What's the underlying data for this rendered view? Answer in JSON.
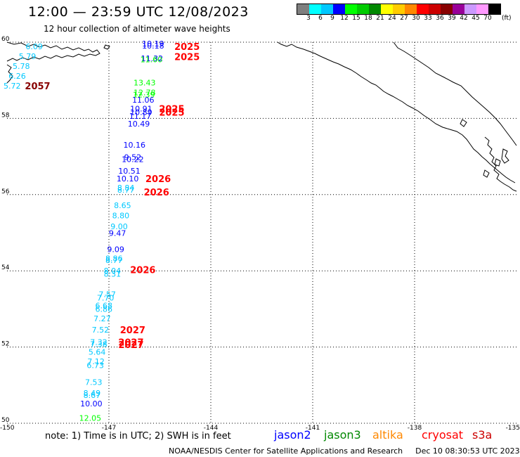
{
  "header": {
    "title": "12:00 — 23:59 UTC 12/08/2023",
    "subtitle": "12 hour collection of altimeter wave heights"
  },
  "colorbar": {
    "colors": [
      "#7f7f7f",
      "#00ffff",
      "#00c8ff",
      "#0000ff",
      "#00ff00",
      "#00cc00",
      "#008800",
      "#ffff00",
      "#ffcc00",
      "#ff8800",
      "#ff0000",
      "#cc0000",
      "#880000",
      "#990099",
      "#cc99ff",
      "#ff99ff",
      "#000000"
    ],
    "labels": [
      "3",
      "6",
      "9",
      "12",
      "15",
      "18",
      "21",
      "24",
      "27",
      "30",
      "33",
      "36",
      "39",
      "42",
      "45",
      "70"
    ],
    "unit": "(ft)"
  },
  "map": {
    "lat_labels": [
      "60",
      "58",
      "56",
      "54",
      "52",
      "50"
    ],
    "lon_labels": [
      "-150",
      "-147",
      "-144",
      "-141",
      "-138",
      "-135"
    ],
    "observations": [
      {
        "lon": -149.2,
        "lat": 59.89,
        "value": "6.09",
        "color": "#00c8ff"
      },
      {
        "lon": -149.4,
        "lat": 59.63,
        "value": "5.79",
        "color": "#00c8ff"
      },
      {
        "lon": -149.58,
        "lat": 59.37,
        "value": "5.78",
        "color": "#00c8ff"
      },
      {
        "lon": -149.7,
        "lat": 59.11,
        "value": "6.26",
        "color": "#00c8ff"
      },
      {
        "lon": -149.85,
        "lat": 58.86,
        "value": "5.72",
        "color": "#00c8ff"
      },
      {
        "lon": -145.7,
        "lat": 59.96,
        "value": "10.19",
        "color": "#0000ff"
      },
      {
        "lon": -145.7,
        "lat": 59.91,
        "value": "10.18",
        "color": "#0000ff"
      },
      {
        "lon": -145.73,
        "lat": 59.58,
        "value": "11.32",
        "color": "#0000ff"
      },
      {
        "lon": -145.75,
        "lat": 59.55,
        "value": "11.60",
        "color": "#00ff00"
      },
      {
        "lon": -145.95,
        "lat": 58.94,
        "value": "13.43",
        "color": "#00ff00"
      },
      {
        "lon": -145.95,
        "lat": 58.68,
        "value": "12.78",
        "color": "#00ff00"
      },
      {
        "lon": -145.97,
        "lat": 58.63,
        "value": "12.39",
        "color": "#00ff00"
      },
      {
        "lon": -145.99,
        "lat": 58.49,
        "value": "11.06",
        "color": "#0000ff"
      },
      {
        "lon": -146.05,
        "lat": 58.26,
        "value": "10.91",
        "color": "#0000ff"
      },
      {
        "lon": -146.05,
        "lat": 58.16,
        "value": "10.89",
        "color": "#0000ff"
      },
      {
        "lon": -146.08,
        "lat": 58.06,
        "value": "11.17",
        "color": "#0000ff"
      },
      {
        "lon": -146.12,
        "lat": 57.86,
        "value": "10.49",
        "color": "#0000ff"
      },
      {
        "lon": -146.25,
        "lat": 57.31,
        "value": "10.16",
        "color": "#0000ff"
      },
      {
        "lon": -146.3,
        "lat": 56.98,
        "value": "9.52",
        "color": "#0000ff"
      },
      {
        "lon": -146.3,
        "lat": 56.93,
        "value": "10.22",
        "color": "#0000ff"
      },
      {
        "lon": -146.4,
        "lat": 56.62,
        "value": "10.51",
        "color": "#0000ff"
      },
      {
        "lon": -146.45,
        "lat": 56.42,
        "value": "10.10",
        "color": "#0000ff"
      },
      {
        "lon": -146.5,
        "lat": 56.18,
        "value": "8.84",
        "color": "#00c8ff"
      },
      {
        "lon": -146.5,
        "lat": 56.13,
        "value": "8.77",
        "color": "#00c8ff"
      },
      {
        "lon": -146.6,
        "lat": 55.72,
        "value": "8.65",
        "color": "#00c8ff"
      },
      {
        "lon": -146.65,
        "lat": 55.45,
        "value": "8.80",
        "color": "#00c8ff"
      },
      {
        "lon": -146.7,
        "lat": 55.17,
        "value": "9.00",
        "color": "#00c8ff"
      },
      {
        "lon": -146.75,
        "lat": 54.99,
        "value": "9.47",
        "color": "#0000ff"
      },
      {
        "lon": -146.8,
        "lat": 54.57,
        "value": "9.09",
        "color": "#0000ff"
      },
      {
        "lon": -146.85,
        "lat": 54.33,
        "value": "8.86",
        "color": "#00c8ff"
      },
      {
        "lon": -146.85,
        "lat": 54.28,
        "value": "8.77",
        "color": "#00c8ff"
      },
      {
        "lon": -146.9,
        "lat": 54.0,
        "value": "8.04",
        "color": "#00c8ff"
      },
      {
        "lon": -146.9,
        "lat": 53.92,
        "value": "8.31",
        "color": "#00c8ff"
      },
      {
        "lon": -147.05,
        "lat": 53.39,
        "value": "7.57",
        "color": "#00c8ff"
      },
      {
        "lon": -147.1,
        "lat": 53.29,
        "value": "7.70",
        "color": "#00c8ff"
      },
      {
        "lon": -147.15,
        "lat": 53.09,
        "value": "6.68",
        "color": "#00c8ff"
      },
      {
        "lon": -147.15,
        "lat": 53.0,
        "value": "6.86",
        "color": "#00c8ff"
      },
      {
        "lon": -147.2,
        "lat": 52.75,
        "value": "7.27",
        "color": "#00c8ff"
      },
      {
        "lon": -147.25,
        "lat": 52.45,
        "value": "7.52",
        "color": "#00c8ff"
      },
      {
        "lon": -147.3,
        "lat": 52.13,
        "value": "7.32",
        "color": "#00c8ff"
      },
      {
        "lon": -147.3,
        "lat": 52.08,
        "value": "7.38",
        "color": "#00c8ff"
      },
      {
        "lon": -147.35,
        "lat": 51.87,
        "value": "5.64",
        "color": "#00c8ff"
      },
      {
        "lon": -147.38,
        "lat": 51.62,
        "value": "7.12",
        "color": "#00c8ff"
      },
      {
        "lon": -147.4,
        "lat": 51.52,
        "value": "6.73",
        "color": "#00c8ff"
      },
      {
        "lon": -147.45,
        "lat": 51.08,
        "value": "7.53",
        "color": "#00c8ff"
      },
      {
        "lon": -147.5,
        "lat": 50.79,
        "value": "8.49",
        "color": "#00c8ff"
      },
      {
        "lon": -147.5,
        "lat": 50.74,
        "value": "8.67",
        "color": "#00c8ff"
      },
      {
        "lon": -147.52,
        "lat": 50.52,
        "value": "10.00",
        "color": "#0000ff"
      },
      {
        "lon": -147.55,
        "lat": 50.14,
        "value": "12.05",
        "color": "#00ff00"
      }
    ],
    "time_labels": [
      {
        "lon": -149.1,
        "lat": 58.86,
        "text": "2057",
        "color": "#880000"
      },
      {
        "lon": -144.7,
        "lat": 59.89,
        "text": "2025",
        "color": "#ff0000"
      },
      {
        "lon": -144.7,
        "lat": 59.62,
        "text": "2025",
        "color": "#ff0000"
      },
      {
        "lon": -145.15,
        "lat": 58.26,
        "text": "2025",
        "color": "#ff0000"
      },
      {
        "lon": -145.15,
        "lat": 58.16,
        "text": "2025",
        "color": "#ff0000"
      },
      {
        "lon": -145.55,
        "lat": 56.42,
        "text": "2026",
        "color": "#ff0000"
      },
      {
        "lon": -145.6,
        "lat": 56.07,
        "text": "2026",
        "color": "#ff0000"
      },
      {
        "lon": -146.0,
        "lat": 54.03,
        "text": "2026",
        "color": "#ff0000"
      },
      {
        "lon": -146.3,
        "lat": 52.45,
        "text": "2027",
        "color": "#ff0000"
      },
      {
        "lon": -146.35,
        "lat": 52.13,
        "text": "2027",
        "color": "#ff0000"
      },
      {
        "lon": -146.35,
        "lat": 52.07,
        "text": "2027",
        "color": "#ff0000"
      }
    ]
  },
  "legend": {
    "note": "note: 1) Time is in UTC; 2) SWH is in feet",
    "satellites": [
      {
        "name": "jason2",
        "color": "#0000ff"
      },
      {
        "name": "jason3",
        "color": "#008800"
      },
      {
        "name": "altika",
        "color": "#ff8800"
      },
      {
        "name": "cryosat",
        "color": "#ff0000"
      },
      {
        "name": "s3a",
        "color": "#cc0000"
      }
    ]
  },
  "footer": {
    "credit": "NOAA/NESDIS Center for Satellite Applications and Research",
    "timestamp": "Dec 10 08:30:53 UTC 2023"
  }
}
